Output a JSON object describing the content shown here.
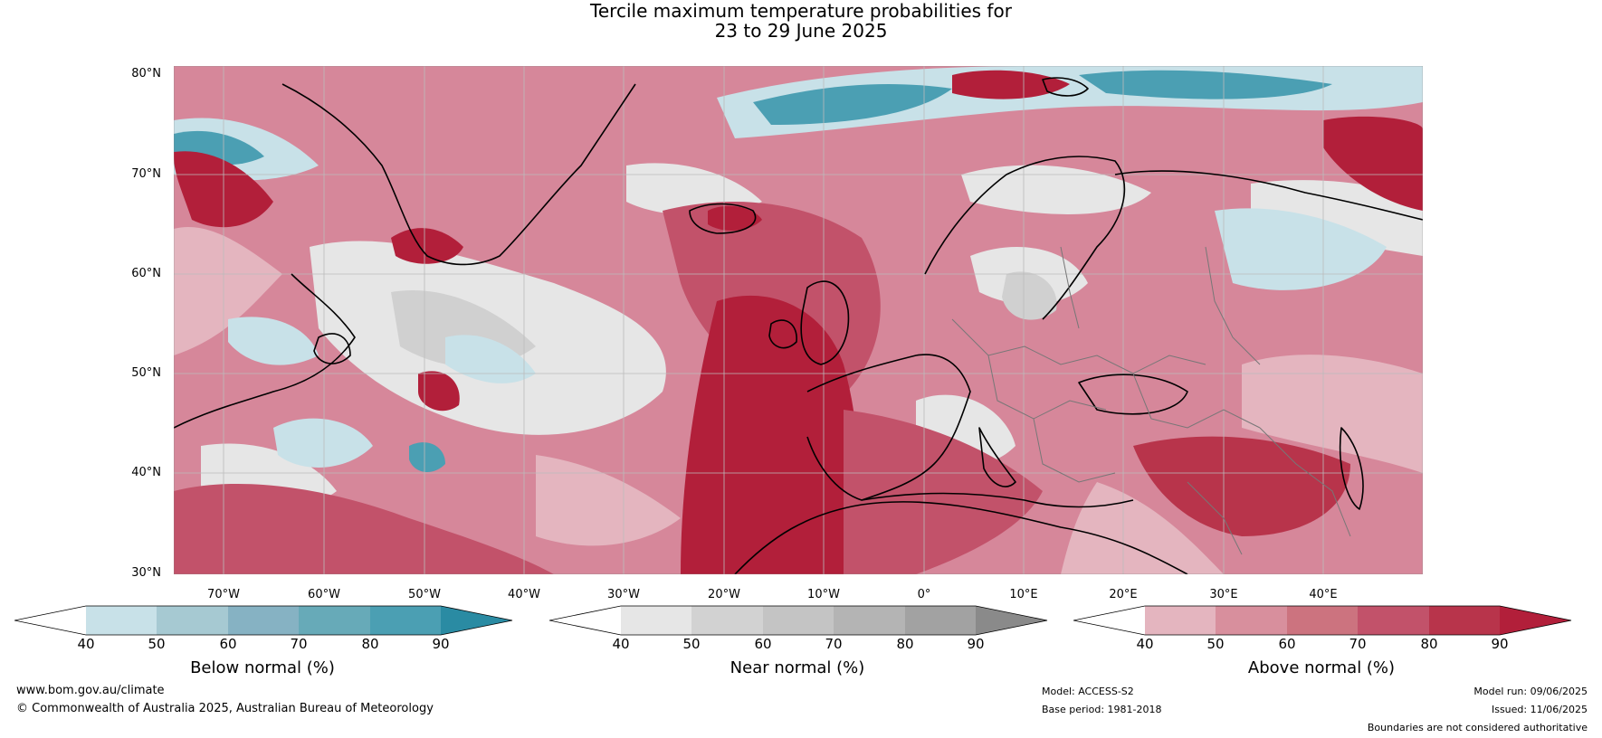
{
  "title": {
    "line1": "Tercile maximum temperature probabilities for",
    "line2": "23 to 29 June 2025"
  },
  "map": {
    "lat_labels": [
      "80°N",
      "70°N",
      "60°N",
      "50°N",
      "40°N",
      "30°N"
    ],
    "lon_labels": [
      "70°W",
      "60°W",
      "50°W",
      "40°W",
      "30°W",
      "20°W",
      "10°W",
      "0°",
      "10°E",
      "20°E",
      "30°E",
      "40°E"
    ],
    "colors": {
      "ocean_base": "#d6879a",
      "strong_red": "#b21f3a",
      "mid_red": "#c9465f",
      "light_red": "#e4b5bf",
      "near_grey": "#d0d0d0",
      "light_grey": "#e6e6e6",
      "blue": "#4b9fb3",
      "light_blue": "#c8e1e8",
      "coast": "#000000",
      "border": "#777777"
    }
  },
  "legends": [
    {
      "caption": "Below normal (%)",
      "ticks": [
        "40",
        "50",
        "60",
        "70",
        "80",
        "90"
      ],
      "colors": [
        "#ffffff",
        "#c8e1e8",
        "#a6c9d2",
        "#86b2c3",
        "#67aab8",
        "#4b9fb3",
        "#2a8ba3"
      ]
    },
    {
      "caption": "Near normal (%)",
      "ticks": [
        "40",
        "50",
        "60",
        "70",
        "80",
        "90"
      ],
      "colors": [
        "#ffffff",
        "#e6e6e6",
        "#d2d2d2",
        "#c4c4c4",
        "#b4b4b4",
        "#a2a2a2",
        "#8a8a8a"
      ]
    },
    {
      "caption": "Above normal (%)",
      "ticks": [
        "40",
        "50",
        "60",
        "70",
        "80",
        "90"
      ],
      "colors": [
        "#ffffff",
        "#e4b5bf",
        "#d88f9d",
        "#cc737f",
        "#c2526a",
        "#b8344b",
        "#b21f3a"
      ]
    }
  ],
  "footer": {
    "website": "www.bom.gov.au/climate",
    "copyright": "© Commonwealth of Australia 2025, Australian Bureau of Meteorology",
    "model": "Model: ACCESS-S2",
    "base_period": "Base period: 1981-2018",
    "model_run": "Model run: 09/06/2025",
    "issued": "Issued: 11/06/2025",
    "disclaimer": "Boundaries are not considered authoritative"
  }
}
